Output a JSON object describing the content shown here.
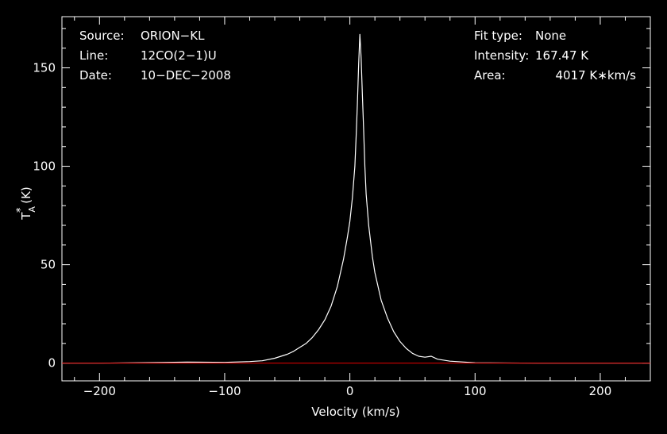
{
  "chart_data": {
    "type": "line",
    "title": "",
    "xlabel": "Velocity (km/s)",
    "ylabel": {
      "main": "T",
      "sup": "*",
      "sub": "A",
      "unit": " (K)"
    },
    "xlim": [
      -230,
      240
    ],
    "ylim": [
      -9,
      176
    ],
    "x_ticks": [
      -200,
      -100,
      0,
      100,
      200
    ],
    "x_tick_labels": [
      "−200",
      "−100",
      "0",
      "100",
      "200"
    ],
    "y_ticks": [
      0,
      50,
      100,
      150
    ],
    "y_tick_labels": [
      "0",
      "50",
      "100",
      "150"
    ],
    "grid": false,
    "colors": {
      "background": "#000000",
      "axes": "#ffffff",
      "spectrum": "#ffffff",
      "baseline": "#d00000"
    },
    "series": [
      {
        "x": [
          -230,
          -200,
          -150,
          -130,
          -100,
          -80,
          -70,
          -60,
          -50,
          -45,
          -40,
          -35,
          -30,
          -25,
          -20,
          -15,
          -10,
          -5,
          -2,
          0,
          2,
          4,
          5,
          6,
          7,
          8,
          9,
          10,
          11,
          12,
          13,
          15,
          18,
          20,
          25,
          30,
          35,
          40,
          45,
          50,
          55,
          60,
          65,
          70,
          80,
          100,
          150,
          200,
          240
        ],
        "values": [
          0,
          0,
          0.3,
          0.5,
          0.4,
          0.8,
          1.2,
          2.5,
          4.5,
          6,
          8,
          10,
          13,
          17,
          22,
          29,
          39,
          53,
          64,
          72,
          84,
          100,
          115,
          132,
          152,
          167,
          155,
          136,
          118,
          100,
          86,
          70,
          54,
          46,
          32,
          23,
          16,
          11,
          7.5,
          5,
          3.5,
          3,
          3.5,
          2,
          1,
          0.2,
          0,
          0,
          0
        ]
      }
    ],
    "baseline": {
      "value": 0
    }
  },
  "info": {
    "source_label": "Source:",
    "source_value": "ORION−KL",
    "line_label": "Line:",
    "line_value": "12CO(2−1)U",
    "date_label": "Date:",
    "date_value": "10−DEC−2008",
    "fit_label": "Fit type:",
    "fit_value": "None",
    "intensity_label": "Intensity:",
    "intensity_value": "167.47 K",
    "area_label": "Area:",
    "area_value": "4017 K∗km/s"
  }
}
